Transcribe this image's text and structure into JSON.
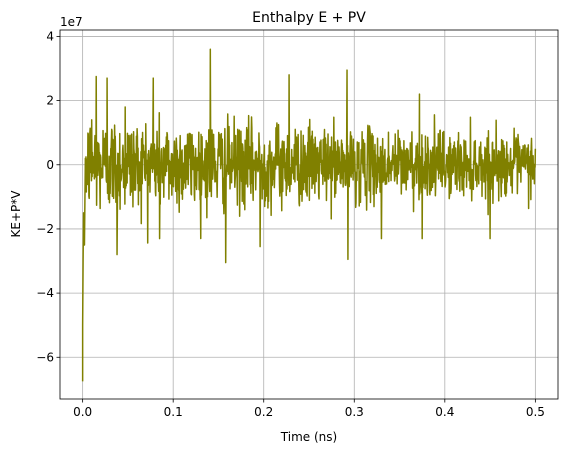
{
  "chart_data": {
    "type": "line",
    "title": "Enthalpy E + PV",
    "xlabel": "Time (ns)",
    "ylabel": "KE+P*V",
    "y_offset_label": "1e7",
    "xlim": [
      -0.025,
      0.525
    ],
    "ylim": [
      -73000000.0,
      42000000.0
    ],
    "x_ticks": [
      0.0,
      0.1,
      0.2,
      0.3,
      0.4,
      0.5
    ],
    "x_tick_labels": [
      "0.0",
      "0.1",
      "0.2",
      "0.3",
      "0.4",
      "0.5"
    ],
    "y_ticks": [
      -60000000.0,
      -40000000.0,
      -20000000.0,
      0,
      20000000.0,
      40000000.0
    ],
    "y_tick_labels": [
      "−6",
      "−4",
      "−2",
      "0",
      "2",
      "4"
    ],
    "grid": true,
    "series": [
      {
        "color": "#808000",
        "x_range": [
          0.0,
          0.5
        ],
        "noisy_trace": true,
        "key_points": [
          {
            "x": 0.0,
            "y": -67500000.0
          },
          {
            "x": 0.0,
            "y": -50000000.0
          },
          {
            "x": 0.0005,
            "y": -30000000.0
          },
          {
            "x": 0.001,
            "y": -15000000.0
          },
          {
            "x": 0.002,
            "y": -25000000.0
          },
          {
            "x": 0.003,
            "y": 2000000.0
          },
          {
            "x": 0.01,
            "y": 14000000.0
          },
          {
            "x": 0.015,
            "y": 27500000.0
          },
          {
            "x": 0.027,
            "y": 27000000.0
          },
          {
            "x": 0.038,
            "y": -28000000.0
          },
          {
            "x": 0.047,
            "y": 18000000.0
          },
          {
            "x": 0.078,
            "y": 27000000.0
          },
          {
            "x": 0.085,
            "y": -23000000.0
          },
          {
            "x": 0.141,
            "y": 36000000.0
          },
          {
            "x": 0.158,
            "y": -30500000.0
          },
          {
            "x": 0.196,
            "y": -25500000.0
          },
          {
            "x": 0.228,
            "y": 28000000.0
          },
          {
            "x": 0.292,
            "y": 29500000.0
          },
          {
            "x": 0.293,
            "y": -29500000.0
          },
          {
            "x": 0.33,
            "y": -23000000.0
          },
          {
            "x": 0.372,
            "y": 22000000.0
          },
          {
            "x": 0.375,
            "y": -23000000.0
          },
          {
            "x": 0.45,
            "y": -23000000.0
          },
          {
            "x": 0.5,
            "y": 5000000.0
          }
        ]
      }
    ]
  }
}
